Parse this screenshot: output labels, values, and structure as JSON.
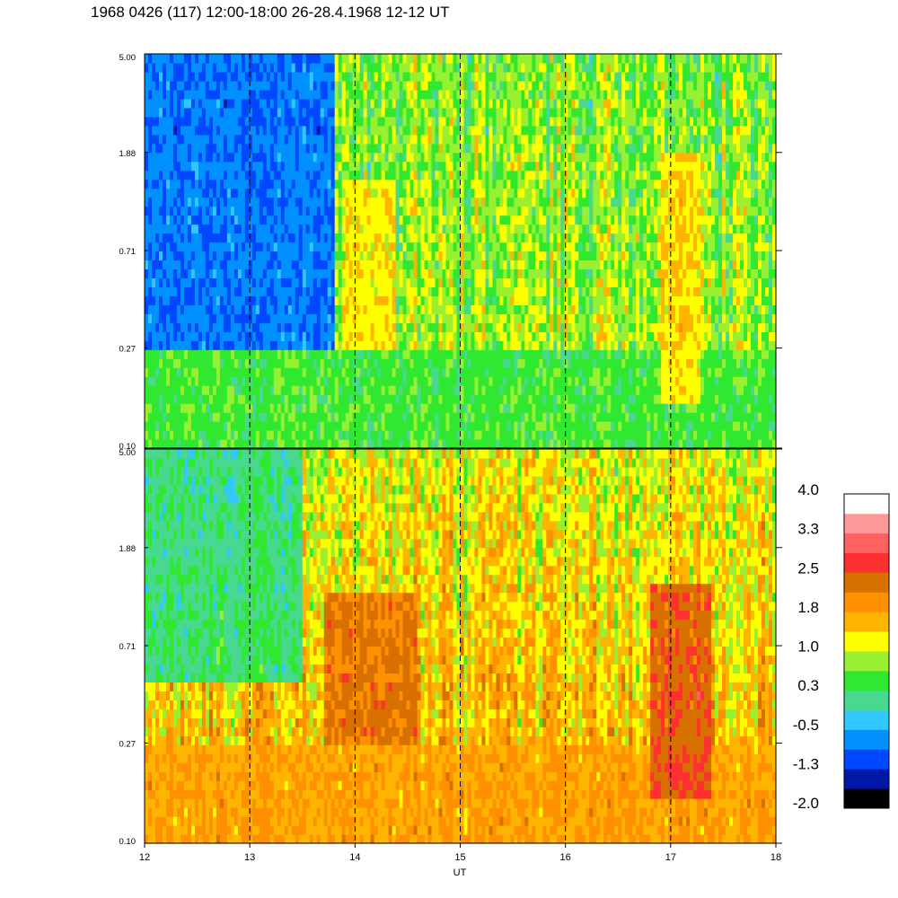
{
  "title": "1968 0426 (117) 12:00-18:00 26-28.4.1968  12-12 UT",
  "colors": {
    "scale": [
      "#000000",
      "#0018a8",
      "#0048ff",
      "#0090ff",
      "#30c8ff",
      "#48d890",
      "#30e830",
      "#98f030",
      "#ffff00",
      "#ffb400",
      "#ff9000",
      "#d87000",
      "#ff3030",
      "#ff6060",
      "#ff9898",
      "#ffffff"
    ]
  },
  "chart_data": [
    {
      "type": "heatmap",
      "panel": "top",
      "x_ticks": [
        "12",
        "13",
        "14",
        "15",
        "16",
        "17",
        "18"
      ],
      "y_ticks": [
        "0.10",
        "0.27",
        "0.71",
        "1.88",
        "5.00"
      ],
      "xlim": [
        12,
        18
      ],
      "ylim": [
        0.1,
        5.0
      ],
      "y_scale": "log",
      "grid": "dashed vertical lines at each hour",
      "features": [
        {
          "x_range": [
            12.0,
            13.8
          ],
          "y_range": [
            0.27,
            5.0
          ],
          "level": -1.5
        },
        {
          "x_range": [
            12.0,
            18.0
          ],
          "y_range": [
            0.1,
            0.27
          ],
          "level": 0.3
        },
        {
          "x_range": [
            13.9,
            14.4
          ],
          "y_range": [
            0.27,
            1.5
          ],
          "level": 1.5
        },
        {
          "x_range": [
            16.9,
            17.3
          ],
          "y_range": [
            0.15,
            1.88
          ],
          "level": 1.6
        }
      ]
    },
    {
      "type": "heatmap",
      "panel": "bottom",
      "x_ticks": [
        "12",
        "13",
        "14",
        "15",
        "16",
        "17",
        "18"
      ],
      "xlabel": "UT",
      "y_ticks": [
        "0.10",
        "0.27",
        "0.71",
        "1.88",
        "5.00"
      ],
      "xlim": [
        12,
        18
      ],
      "ylim": [
        0.1,
        5.0
      ],
      "y_scale": "log",
      "grid": "dashed vertical lines at each hour",
      "features": [
        {
          "x_range": [
            12.0,
            13.5
          ],
          "y_range": [
            0.5,
            5.0
          ],
          "level": -0.3
        },
        {
          "x_range": [
            12.0,
            18.0
          ],
          "y_range": [
            0.1,
            0.27
          ],
          "level": 1.8
        },
        {
          "x_range": [
            13.7,
            14.6
          ],
          "y_range": [
            0.27,
            1.2
          ],
          "level": 2.5
        },
        {
          "x_range": [
            16.8,
            17.4
          ],
          "y_range": [
            0.15,
            1.3
          ],
          "level": 2.8
        }
      ]
    }
  ],
  "colorbar": {
    "labels": [
      "4.0",
      "3.3",
      "2.5",
      "1.8",
      "1.0",
      "0.3",
      "-0.5",
      "-1.3",
      "-2.0"
    ]
  }
}
